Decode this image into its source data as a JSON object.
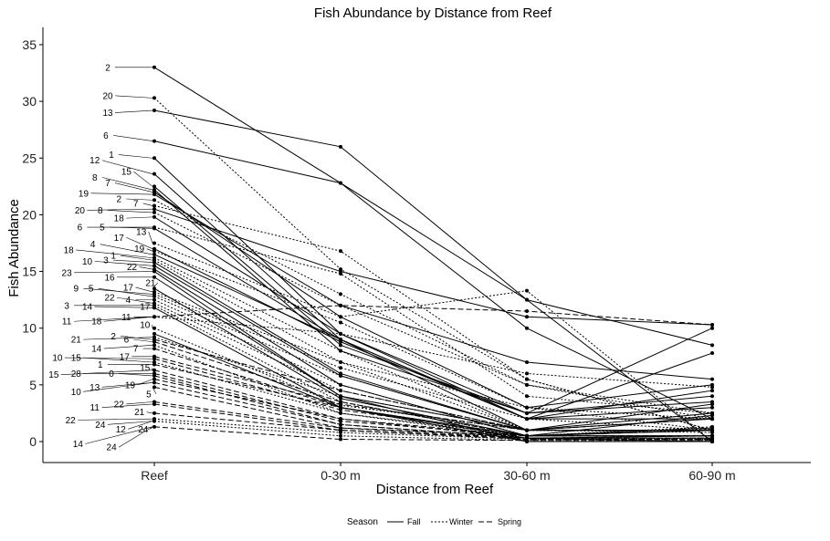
{
  "chart_data": {
    "type": "line",
    "title": "Fish Abundance by Distance from Reef",
    "xlabel": "Distance from Reef",
    "ylabel": "Fish Abundance",
    "categories": [
      "Reef",
      "0-30 m",
      "30-60 m",
      "60-90 m"
    ],
    "ylim": [
      -2,
      36
    ],
    "yticks": [
      0,
      5,
      10,
      15,
      20,
      25,
      30,
      35
    ],
    "grid": false,
    "legend": {
      "title": "Season",
      "position": "bottom",
      "entries": [
        {
          "label": "Fall",
          "dash": "solid"
        },
        {
          "label": "Winter",
          "dash": "dotted"
        },
        {
          "label": "Spring",
          "dash": "dashed"
        }
      ]
    },
    "series": [
      {
        "label": "2",
        "season": "Fall",
        "values": [
          33,
          22.8,
          10,
          2
        ]
      },
      {
        "label": "20",
        "season": "Winter",
        "values": [
          30.3,
          15.2,
          5.5,
          1
        ]
      },
      {
        "label": "13",
        "season": "Fall",
        "values": [
          29.2,
          26,
          12.5,
          0
        ]
      },
      {
        "label": "6",
        "season": "Fall",
        "values": [
          26.5,
          22.8,
          12.5,
          8.5
        ]
      },
      {
        "label": "1",
        "season": "Fall",
        "values": [
          25,
          9.5,
          2,
          4.5
        ]
      },
      {
        "label": "12",
        "season": "Fall",
        "values": [
          23.6,
          9,
          2,
          3
        ]
      },
      {
        "label": "15",
        "season": "Fall",
        "values": [
          22.5,
          8.5,
          2.5,
          4
        ]
      },
      {
        "label": "8",
        "season": "Fall",
        "values": [
          22.2,
          8,
          2.5,
          3.5
        ]
      },
      {
        "label": "7",
        "season": "Fall",
        "values": [
          22,
          11,
          3,
          5
        ]
      },
      {
        "label": "19",
        "season": "Fall",
        "values": [
          21.8,
          12,
          7,
          5.5
        ]
      },
      {
        "label": "2",
        "season": "Winter",
        "values": [
          21.3,
          13,
          5,
          2.5
        ]
      },
      {
        "label": "7",
        "season": "Winter",
        "values": [
          20.8,
          16.8,
          5.5,
          1
        ]
      },
      {
        "label": "20",
        "season": "Fall",
        "values": [
          20.5,
          15,
          11,
          10.3
        ]
      },
      {
        "label": "8",
        "season": "Winter",
        "values": [
          20.2,
          12,
          5,
          2
        ]
      },
      {
        "label": "18",
        "season": "Fall",
        "values": [
          19.8,
          9.5,
          2.5,
          10
        ]
      },
      {
        "label": "6",
        "season": "Winter",
        "values": [
          18.9,
          14.8,
          4,
          2.5
        ]
      },
      {
        "label": "5",
        "season": "Fall",
        "values": [
          18.8,
          9,
          1,
          2.5
        ]
      },
      {
        "label": "13",
        "season": "Winter",
        "values": [
          17.5,
          11,
          13.3,
          0
        ]
      },
      {
        "label": "17",
        "season": "Fall",
        "values": [
          17,
          8.8,
          2,
          2
        ]
      },
      {
        "label": "19",
        "season": "Winter",
        "values": [
          16.8,
          10.5,
          3,
          2
        ]
      },
      {
        "label": "4",
        "season": "Fall",
        "values": [
          16.5,
          9,
          2,
          7.8
        ]
      },
      {
        "label": "18",
        "season": "Winter",
        "values": [
          16.2,
          8,
          1,
          1
        ]
      },
      {
        "label": "1",
        "season": "Winter",
        "values": [
          16,
          7,
          1,
          2
        ]
      },
      {
        "label": "3",
        "season": "Fall",
        "values": [
          15.8,
          6,
          1,
          2
        ]
      },
      {
        "label": "10",
        "season": "Fall",
        "values": [
          15.5,
          5.8,
          1,
          3.3
        ]
      },
      {
        "label": "22",
        "season": "Fall",
        "values": [
          15.2,
          5,
          0.5,
          1.2
        ]
      },
      {
        "label": "23",
        "season": "Fall",
        "values": [
          15,
          4,
          1,
          1
        ]
      },
      {
        "label": "16",
        "season": "Fall",
        "values": [
          14.5,
          4,
          0,
          0
        ]
      },
      {
        "label": "21",
        "season": "Fall",
        "values": [
          13.5,
          3.8,
          0.5,
          2.3
        ]
      },
      {
        "label": "17",
        "season": "Winter",
        "values": [
          13.2,
          7,
          3,
          1
        ]
      },
      {
        "label": "9",
        "season": "Winter",
        "values": [
          13,
          6.5,
          2,
          1
        ]
      },
      {
        "label": "5",
        "season": "Winter",
        "values": [
          12.8,
          5.8,
          1,
          1
        ]
      },
      {
        "label": "4",
        "season": "Winter",
        "values": [
          12.5,
          5,
          0.5,
          1.3
        ]
      },
      {
        "label": "22",
        "season": "Winter",
        "values": [
          12.2,
          4.5,
          1,
          1
        ]
      },
      {
        "label": "3",
        "season": "Winter",
        "values": [
          12,
          3.5,
          0.5,
          0.5
        ]
      },
      {
        "label": "14",
        "season": "Fall",
        "values": [
          11.8,
          3,
          0.3,
          0
        ]
      },
      {
        "label": "11",
        "season": "Winter",
        "values": [
          11,
          9.5,
          6,
          4.8
        ]
      },
      {
        "label": "18",
        "season": "Spring",
        "values": [
          11,
          12,
          11.5,
          10.3
        ]
      },
      {
        "label": "10",
        "season": "Winter",
        "values": [
          10,
          3.2,
          1,
          1
        ]
      },
      {
        "label": "11",
        "season": "Fall",
        "values": [
          9.5,
          3,
          0,
          0
        ]
      },
      {
        "label": "21",
        "season": "Winter",
        "values": [
          9.2,
          4,
          1,
          0.8
        ]
      },
      {
        "label": "2",
        "season": "Spring",
        "values": [
          9,
          4.5,
          1,
          1
        ]
      },
      {
        "label": "6",
        "season": "Spring",
        "values": [
          8.8,
          3.5,
          0.5,
          1
        ]
      },
      {
        "label": "14",
        "season": "Winter",
        "values": [
          8.5,
          2.5,
          0.5,
          0.5
        ]
      },
      {
        "label": "7",
        "season": "Spring",
        "values": [
          8.2,
          3,
          0.5,
          0.5
        ]
      },
      {
        "label": "17",
        "season": "Spring",
        "values": [
          7.5,
          3.3,
          1,
          2
        ]
      },
      {
        "label": "10",
        "season": "Spring",
        "values": [
          7.3,
          2.8,
          0.5,
          1
        ]
      },
      {
        "label": "15",
        "season": "Winter",
        "values": [
          7,
          2.5,
          0.3,
          0.3
        ]
      },
      {
        "label": "1",
        "season": "Spring",
        "values": [
          6.8,
          3,
          0.5,
          1
        ]
      },
      {
        "label": "15",
        "season": "Spring",
        "values": [
          6.3,
          2,
          0.3,
          0.3
        ]
      },
      {
        "label": "28",
        "season": "Spring",
        "values": [
          6,
          1.8,
          0.5,
          0.5
        ]
      },
      {
        "label": "0",
        "season": "Spring",
        "values": [
          5.8,
          1.5,
          0.3,
          0.3
        ]
      },
      {
        "label": "19",
        "season": "Spring",
        "values": [
          5.5,
          2,
          0.5,
          1
        ]
      },
      {
        "label": "13",
        "season": "Spring",
        "values": [
          5.2,
          1.5,
          0.3,
          0.5
        ]
      },
      {
        "label": "5",
        "season": "Spring",
        "values": [
          4.8,
          1.2,
          0.5,
          0.5
        ]
      },
      {
        "label": "22",
        "season": "Spring",
        "values": [
          3.5,
          1.2,
          0.3,
          0.5
        ]
      },
      {
        "label": "11",
        "season": "Spring",
        "values": [
          3.3,
          1,
          0.3,
          0.3
        ]
      },
      {
        "label": "21",
        "season": "Spring",
        "values": [
          2.5,
          1,
          0.2,
          0.2
        ]
      },
      {
        "label": "24",
        "season": "Winter",
        "values": [
          2,
          0.8,
          0.2,
          0.2
        ]
      },
      {
        "label": "12",
        "season": "Winter",
        "values": [
          1.8,
          0.5,
          0.1,
          0.1
        ]
      },
      {
        "label": "24",
        "season": "Spring",
        "values": [
          1.3,
          0.2,
          0.1,
          0.1
        ]
      }
    ],
    "point_labels": [
      {
        "text": "2",
        "lx": -0.25,
        "ly": 33.0,
        "attach": 33.0
      },
      {
        "text": "20",
        "lx": -0.25,
        "ly": 30.5,
        "attach": 30.3
      },
      {
        "text": "13",
        "lx": -0.25,
        "ly": 29.0,
        "attach": 29.2
      },
      {
        "text": "6",
        "lx": -0.26,
        "ly": 27.0,
        "attach": 26.5
      },
      {
        "text": "1",
        "lx": -0.23,
        "ly": 25.3,
        "attach": 25.0
      },
      {
        "text": "12",
        "lx": -0.32,
        "ly": 24.8,
        "attach": 23.6
      },
      {
        "text": "15",
        "lx": -0.15,
        "ly": 23.8,
        "attach": 22.5
      },
      {
        "text": "8",
        "lx": -0.32,
        "ly": 23.3,
        "attach": 22.2
      },
      {
        "text": "7",
        "lx": -0.25,
        "ly": 22.8,
        "attach": 22.0
      },
      {
        "text": "19",
        "lx": -0.38,
        "ly": 21.9,
        "attach": 21.8
      },
      {
        "text": "2",
        "lx": -0.19,
        "ly": 21.4,
        "attach": 21.3
      },
      {
        "text": "7",
        "lx": -0.1,
        "ly": 21.0,
        "attach": 20.8
      },
      {
        "text": "20",
        "lx": -0.4,
        "ly": 20.4,
        "attach": 20.5
      },
      {
        "text": "8",
        "lx": -0.29,
        "ly": 20.4,
        "attach": 20.2
      },
      {
        "text": "18",
        "lx": -0.19,
        "ly": 19.7,
        "attach": 19.8
      },
      {
        "text": "6",
        "lx": -0.4,
        "ly": 18.9,
        "attach": 18.9
      },
      {
        "text": "5",
        "lx": -0.28,
        "ly": 18.9,
        "attach": 18.8
      },
      {
        "text": "13",
        "lx": -0.07,
        "ly": 18.5,
        "attach": 17.5
      },
      {
        "text": "17",
        "lx": -0.19,
        "ly": 18.0,
        "attach": 17.0
      },
      {
        "text": "4",
        "lx": -0.33,
        "ly": 17.4,
        "attach": 16.5
      },
      {
        "text": "19",
        "lx": -0.08,
        "ly": 17.0,
        "attach": 16.8
      },
      {
        "text": "18",
        "lx": -0.46,
        "ly": 16.9,
        "attach": 16.2
      },
      {
        "text": "1",
        "lx": -0.22,
        "ly": 16.4,
        "attach": 16.0
      },
      {
        "text": "3",
        "lx": -0.26,
        "ly": 16.0,
        "attach": 15.8
      },
      {
        "text": "10",
        "lx": -0.36,
        "ly": 15.9,
        "attach": 15.5
      },
      {
        "text": "22",
        "lx": -0.12,
        "ly": 15.4,
        "attach": 15.2
      },
      {
        "text": "23",
        "lx": -0.47,
        "ly": 14.9,
        "attach": 15.0
      },
      {
        "text": "16",
        "lx": -0.24,
        "ly": 14.5,
        "attach": 14.5
      },
      {
        "text": "17",
        "lx": -0.14,
        "ly": 13.6,
        "attach": 13.2
      },
      {
        "text": "21",
        "lx": -0.02,
        "ly": 14.0,
        "attach": 13.5
      },
      {
        "text": "9",
        "lx": -0.42,
        "ly": 13.5,
        "attach": 13.0
      },
      {
        "text": "5",
        "lx": -0.34,
        "ly": 13.5,
        "attach": 12.8
      },
      {
        "text": "22",
        "lx": -0.24,
        "ly": 12.7,
        "attach": 12.2
      },
      {
        "text": "4",
        "lx": -0.14,
        "ly": 12.5,
        "attach": 12.5
      },
      {
        "text": "3",
        "lx": -0.47,
        "ly": 12.0,
        "attach": 12.0
      },
      {
        "text": "14",
        "lx": -0.36,
        "ly": 11.9,
        "attach": 11.8
      },
      {
        "text": "17",
        "lx": -0.05,
        "ly": 11.9,
        "attach": 11.8
      },
      {
        "text": "11",
        "lx": -0.15,
        "ly": 11.0,
        "attach": 11.0
      },
      {
        "text": "11",
        "lx": -0.47,
        "ly": 10.6,
        "attach": 11.0
      },
      {
        "text": "18",
        "lx": -0.31,
        "ly": 10.6,
        "attach": 11.0
      },
      {
        "text": "10",
        "lx": -0.05,
        "ly": 10.3,
        "attach": 10.0
      },
      {
        "text": "21",
        "lx": -0.42,
        "ly": 9.0,
        "attach": 9.2
      },
      {
        "text": "2",
        "lx": -0.22,
        "ly": 9.3,
        "attach": 9.0
      },
      {
        "text": "6",
        "lx": -0.15,
        "ly": 9.0,
        "attach": 8.8
      },
      {
        "text": "14",
        "lx": -0.31,
        "ly": 8.2,
        "attach": 8.5
      },
      {
        "text": "7",
        "lx": -0.1,
        "ly": 8.2,
        "attach": 8.2
      },
      {
        "text": "10",
        "lx": -0.52,
        "ly": 7.4,
        "attach": 7.3
      },
      {
        "text": "15",
        "lx": -0.42,
        "ly": 7.4,
        "attach": 7.0
      },
      {
        "text": "17",
        "lx": -0.16,
        "ly": 7.5,
        "attach": 7.5
      },
      {
        "text": "1",
        "lx": -0.29,
        "ly": 6.8,
        "attach": 6.8
      },
      {
        "text": "15",
        "lx": -0.54,
        "ly": 5.9,
        "attach": 6.3
      },
      {
        "text": "28",
        "lx": -0.42,
        "ly": 6.0,
        "attach": 6.0
      },
      {
        "text": "0",
        "lx": -0.23,
        "ly": 6.0,
        "attach": 5.8
      },
      {
        "text": "15",
        "lx": -0.05,
        "ly": 6.5,
        "attach": 6.3
      },
      {
        "text": "19",
        "lx": -0.13,
        "ly": 5.0,
        "attach": 5.5
      },
      {
        "text": "10",
        "lx": -0.42,
        "ly": 4.4,
        "attach": 5.2
      },
      {
        "text": "13",
        "lx": -0.32,
        "ly": 4.8,
        "attach": 5.2
      },
      {
        "text": "5",
        "lx": -0.03,
        "ly": 4.2,
        "attach": 4.8
      },
      {
        "text": "11",
        "lx": -0.32,
        "ly": 3.0,
        "attach": 3.3
      },
      {
        "text": "22",
        "lx": -0.19,
        "ly": 3.3,
        "attach": 3.5
      },
      {
        "text": "21",
        "lx": -0.08,
        "ly": 2.6,
        "attach": 2.5
      },
      {
        "text": "22",
        "lx": -0.45,
        "ly": 1.9,
        "attach": 2.0
      },
      {
        "text": "24",
        "lx": -0.29,
        "ly": 1.5,
        "attach": 1.8
      },
      {
        "text": "12",
        "lx": -0.18,
        "ly": 1.1,
        "attach": 1.8
      },
      {
        "text": "24",
        "lx": -0.06,
        "ly": 1.1,
        "attach": 1.3
      },
      {
        "text": "14",
        "lx": -0.41,
        "ly": -0.2,
        "attach": 1.3
      },
      {
        "text": "24",
        "lx": -0.23,
        "ly": -0.5,
        "attach": 1.3
      }
    ]
  }
}
